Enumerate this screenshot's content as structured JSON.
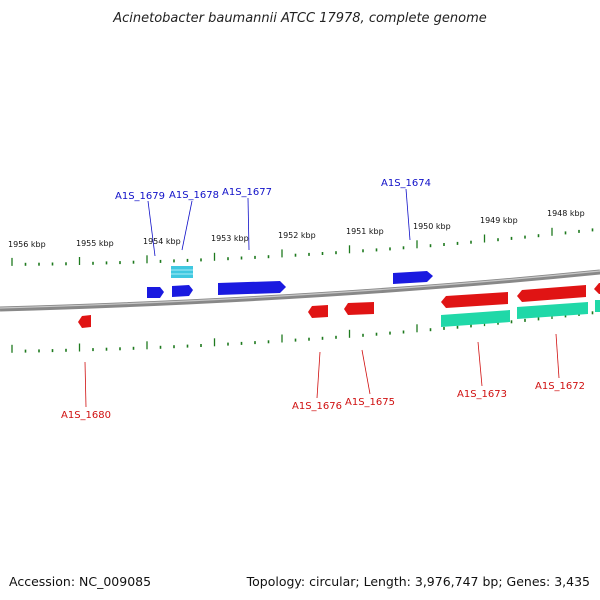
{
  "title": "Acinetobacter baumannii ATCC 17978, complete genome",
  "footer": {
    "accession": "Accession: NC_009085",
    "summary": "Topology: circular; Length: 3,976,747 bp; Genes: 3,435"
  },
  "colors": {
    "forward_gene": "#1a1ae0",
    "reverse_gene": "#e01414",
    "forward_label": "#1010c8",
    "reverse_label": "#d01010",
    "rna_gene": "#20d8a8",
    "light_blue_gene": "#40c8e0",
    "tick": "#1e7a1e",
    "backbone": "#888888"
  },
  "ruler_labels": [
    "1956 kbp",
    "1955 kbp",
    "1954 kbp",
    "1953 kbp",
    "1952 kbp",
    "1951 kbp",
    "1950 kbp",
    "1949 kbp",
    "1948 kbp"
  ],
  "forward_genes": [
    {
      "label": "A1S_1679",
      "kind": "forward"
    },
    {
      "label": "A1S_1678",
      "kind": "forward"
    },
    {
      "label": "A1S_1677",
      "kind": "forward"
    },
    {
      "label": "A1S_1674",
      "kind": "forward"
    }
  ],
  "reverse_genes": [
    {
      "label": "A1S_1680",
      "kind": "reverse"
    },
    {
      "label": "A1S_1676",
      "kind": "reverse"
    },
    {
      "label": "A1S_1675",
      "kind": "reverse"
    },
    {
      "label": "A1S_1673",
      "kind": "reverse"
    },
    {
      "label": "A1S_1672",
      "kind": "reverse"
    }
  ]
}
